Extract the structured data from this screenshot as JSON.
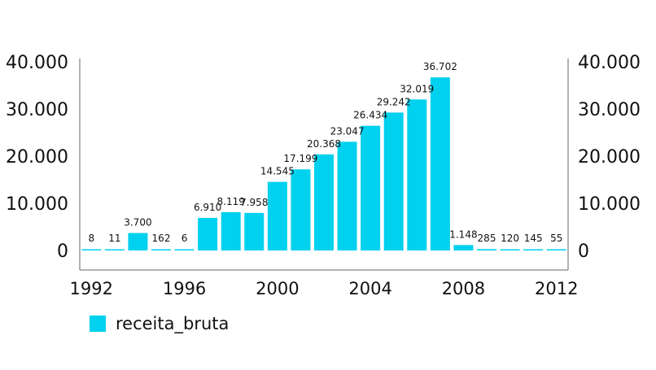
{
  "chart_data": {
    "type": "bar",
    "title": "",
    "xlabel": "",
    "ylabel": "",
    "categories": [
      1992,
      1993,
      1994,
      1995,
      1996,
      1997,
      1998,
      1999,
      2000,
      2001,
      2002,
      2003,
      2004,
      2005,
      2006,
      2007,
      2008,
      2009,
      2010,
      2011,
      2012
    ],
    "series": [
      {
        "name": "receita_bruta",
        "values": [
          8,
          11,
          3700,
          162,
          6,
          6910,
          8119,
          7958,
          14545,
          17199,
          20368,
          23047,
          26434,
          29242,
          32019,
          36702,
          1148,
          285,
          120,
          145,
          55
        ],
        "labels": [
          "8",
          "11",
          "3.700",
          "162",
          "6",
          "6.910",
          "8.119",
          "7.958",
          "14.545",
          "17.199",
          "20.368",
          "23.047",
          "26.434",
          "29.242",
          "32.019",
          "36.702",
          "1.148",
          "285",
          "120",
          "145",
          "55"
        ]
      }
    ],
    "ylim": [
      0,
      40000
    ],
    "y_ticks": [
      0,
      10000,
      20000,
      30000,
      40000
    ],
    "y_tick_labels": [
      "0",
      "10.000",
      "20.000",
      "30.000",
      "40.000"
    ],
    "x_ticks": [
      "1992",
      "1996",
      "2000",
      "2004",
      "2008",
      "2012"
    ],
    "grid": false,
    "legend_position": "bottom-left",
    "colors": {
      "bar": "#00d1ee",
      "axis": "#666666",
      "text": "#111111"
    }
  }
}
